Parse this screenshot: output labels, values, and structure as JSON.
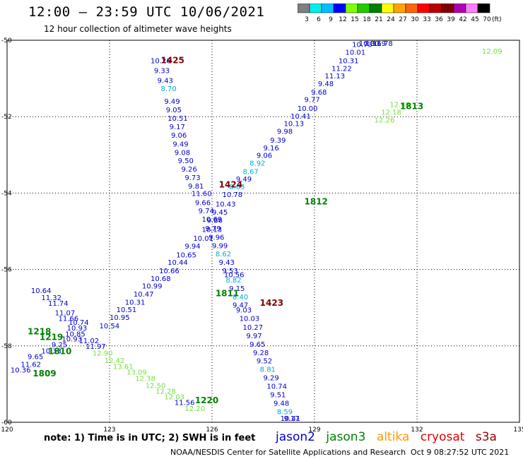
{
  "header": {
    "title": "12:00 — 23:59 UTC 10/06/2021",
    "subtitle": "12 hour collection of altimeter wave heights"
  },
  "colorbar": {
    "labels": [
      "3",
      "6",
      "9",
      "12",
      "15",
      "18",
      "21",
      "24",
      "27",
      "30",
      "33",
      "36",
      "39",
      "42",
      "45",
      "70"
    ],
    "unit": "(ft)",
    "colors": [
      "#808080",
      "#00eeee",
      "#00bfff",
      "#0000ff",
      "#7fff00",
      "#22cc00",
      "#008000",
      "#ffff00",
      "#ffa500",
      "#ff6600",
      "#ff0000",
      "#bb0000",
      "#800000",
      "#b000b0",
      "#ff80ff",
      "#000000"
    ]
  },
  "chart_data": {
    "type": "scatter",
    "xlim": [
      120,
      135
    ],
    "ylim": [
      -60,
      -50
    ],
    "x_ticks": [
      120,
      123,
      126,
      129,
      132,
      135
    ],
    "y_ticks": [
      -50,
      -52,
      -54,
      -56,
      -58,
      -60
    ],
    "x_tick_labels": [
      "120",
      "123",
      "126",
      "129",
      "132",
      "135"
    ],
    "y_tick_labels": [
      "-50",
      "-52",
      "-54",
      "-56",
      "-58",
      "-60"
    ],
    "grid": true,
    "series": [
      {
        "name": "jason2",
        "color": "#0000cc",
        "points": [
          {
            "x": 124.2,
            "y": -50.6,
            "label": "10.26"
          },
          {
            "x": 124.3,
            "y": -50.86,
            "label": "9.33"
          },
          {
            "x": 124.4,
            "y": -51.12,
            "label": "9.43"
          },
          {
            "x": 124.5,
            "y": -51.33,
            "label": "8.70",
            "color": "#00aadd"
          },
          {
            "x": 124.6,
            "y": -51.66,
            "label": "9.49"
          },
          {
            "x": 124.65,
            "y": -51.89,
            "label": "9.05"
          },
          {
            "x": 124.7,
            "y": -52.11,
            "label": "10.51"
          },
          {
            "x": 124.75,
            "y": -52.33,
            "label": "9.17"
          },
          {
            "x": 124.8,
            "y": -52.55,
            "label": "9.06"
          },
          {
            "x": 124.85,
            "y": -52.78,
            "label": "9.49"
          },
          {
            "x": 124.9,
            "y": -53.0,
            "label": "9.08"
          },
          {
            "x": 125.0,
            "y": -53.22,
            "label": "9.50"
          },
          {
            "x": 125.1,
            "y": -53.44,
            "label": "9.26"
          },
          {
            "x": 125.2,
            "y": -53.66,
            "label": "9.73"
          },
          {
            "x": 125.3,
            "y": -53.88,
            "label": "9.81"
          },
          {
            "x": 125.4,
            "y": -54.08,
            "label": "11.60"
          },
          {
            "x": 125.5,
            "y": -54.32,
            "label": "9.66"
          },
          {
            "x": 125.6,
            "y": -54.53,
            "label": "9.74"
          },
          {
            "x": 125.7,
            "y": -54.75,
            "label": "10.69"
          },
          {
            "x": 125.8,
            "y": -54.99,
            "label": "9.79"
          },
          {
            "x": 125.9,
            "y": -55.22,
            "label": "9.96"
          },
          {
            "x": 126.0,
            "y": -55.44,
            "label": "9.99"
          },
          {
            "x": 126.1,
            "y": -55.66,
            "label": "8.62",
            "color": "#00aadd"
          },
          {
            "x": 126.2,
            "y": -55.88,
            "label": "9.43"
          },
          {
            "x": 126.3,
            "y": -56.1,
            "label": "9.53"
          },
          {
            "x": 126.35,
            "y": -56.2,
            "label": "10.56"
          },
          {
            "x": 126.4,
            "y": -56.34,
            "label": "8.82",
            "color": "#00aadd"
          },
          {
            "x": 126.5,
            "y": -56.56,
            "label": "9.15"
          },
          {
            "x": 126.6,
            "y": -56.78,
            "label": "8.40",
            "color": "#00aadd"
          },
          {
            "x": 126.6,
            "y": -57.0,
            "label": "9.47"
          },
          {
            "x": 126.7,
            "y": -57.13,
            "label": "9.03"
          },
          {
            "x": 126.8,
            "y": -57.35,
            "label": "10.03"
          },
          {
            "x": 126.9,
            "y": -57.58,
            "label": "10.27"
          },
          {
            "x": 127.0,
            "y": -57.8,
            "label": "9.97"
          },
          {
            "x": 127.1,
            "y": -58.02,
            "label": "9.65"
          },
          {
            "x": 127.2,
            "y": -58.24,
            "label": "9.28"
          },
          {
            "x": 127.3,
            "y": -58.46,
            "label": "9.52"
          },
          {
            "x": 127.4,
            "y": -58.68,
            "label": "8.81",
            "color": "#00aadd"
          },
          {
            "x": 127.5,
            "y": -58.9,
            "label": "9.29"
          },
          {
            "x": 127.6,
            "y": -59.12,
            "label": "10.74"
          },
          {
            "x": 127.7,
            "y": -59.34,
            "label": "9.51"
          },
          {
            "x": 127.8,
            "y": -59.57,
            "label": "9.48"
          },
          {
            "x": 127.9,
            "y": -59.79,
            "label": "8.59",
            "color": "#00aadd"
          },
          {
            "x": 128.0,
            "y": -60.0,
            "label": "10.41"
          },
          {
            "x": 128.1,
            "y": -60.2,
            "label": "9.17"
          }
        ]
      },
      {
        "name": "jason3",
        "color": "#0000cc",
        "points": [
          {
            "x": 120.1,
            "y": -58.7,
            "label": "10.36"
          },
          {
            "x": 120.4,
            "y": -58.55,
            "label": "11.62"
          },
          {
            "x": 120.6,
            "y": -58.35,
            "label": "9.65"
          },
          {
            "x": 121.0,
            "y": -58.2,
            "label": "10.33"
          },
          {
            "x": 121.3,
            "y": -58.03,
            "label": "9.25"
          },
          {
            "x": 121.6,
            "y": -57.88,
            "label": "10.93"
          },
          {
            "x": 121.7,
            "y": -57.75,
            "label": "10.85"
          },
          {
            "x": 121.75,
            "y": -57.6,
            "label": "10.93"
          },
          {
            "x": 121.8,
            "y": -57.45,
            "label": "10.74"
          },
          {
            "x": 121.5,
            "y": -57.35,
            "label": "11.66"
          },
          {
            "x": 121.4,
            "y": -57.2,
            "label": "11.07"
          },
          {
            "x": 121.2,
            "y": -56.95,
            "label": "11.74"
          },
          {
            "x": 121.0,
            "y": -56.8,
            "label": "11.32"
          },
          {
            "x": 120.7,
            "y": -56.62,
            "label": "10.64"
          },
          {
            "x": 122.1,
            "y": -57.93,
            "label": "11.02"
          },
          {
            "x": 122.3,
            "y": -58.08,
            "label": "11.97"
          },
          {
            "x": 122.7,
            "y": -57.54,
            "label": "10.54"
          },
          {
            "x": 123.0,
            "y": -57.32,
            "label": "10.95"
          },
          {
            "x": 123.2,
            "y": -57.12,
            "label": "10.51"
          },
          {
            "x": 123.45,
            "y": -56.92,
            "label": "10.31"
          },
          {
            "x": 123.7,
            "y": -56.71,
            "label": "10.47"
          },
          {
            "x": 123.95,
            "y": -56.5,
            "label": "10.99"
          },
          {
            "x": 124.2,
            "y": -56.3,
            "label": "10.68"
          },
          {
            "x": 124.45,
            "y": -56.1,
            "label": "10.66"
          },
          {
            "x": 124.7,
            "y": -55.88,
            "label": "10.44"
          },
          {
            "x": 124.95,
            "y": -55.68,
            "label": "10.65"
          },
          {
            "x": 125.2,
            "y": -55.45,
            "label": "9.94"
          },
          {
            "x": 125.45,
            "y": -55.25,
            "label": "10.01"
          },
          {
            "x": 125.7,
            "y": -55.02,
            "label": "10.13"
          },
          {
            "x": 125.85,
            "y": -54.78,
            "label": "9.86"
          },
          {
            "x": 126.0,
            "y": -54.57,
            "label": "9.45"
          },
          {
            "x": 126.1,
            "y": -54.35,
            "label": "10.43"
          },
          {
            "x": 126.3,
            "y": -54.1,
            "label": "10.78"
          },
          {
            "x": 126.5,
            "y": -53.9,
            "label": "8.63",
            "color": "#00aadd"
          },
          {
            "x": 126.7,
            "y": -53.7,
            "label": "9.49"
          },
          {
            "x": 126.9,
            "y": -53.5,
            "label": "8.67",
            "color": "#00aadd"
          },
          {
            "x": 127.1,
            "y": -53.28,
            "label": "8.92",
            "color": "#00aadd"
          },
          {
            "x": 127.3,
            "y": -53.08,
            "label": "9.06"
          },
          {
            "x": 127.5,
            "y": -52.88,
            "label": "9.16"
          },
          {
            "x": 127.7,
            "y": -52.68,
            "label": "9.39"
          },
          {
            "x": 127.9,
            "y": -52.45,
            "label": "9.98"
          },
          {
            "x": 128.1,
            "y": -52.25,
            "label": "10.13"
          },
          {
            "x": 128.3,
            "y": -52.05,
            "label": "10.41"
          },
          {
            "x": 128.5,
            "y": -51.85,
            "label": "10.00"
          },
          {
            "x": 128.7,
            "y": -51.62,
            "label": "9.77"
          },
          {
            "x": 128.9,
            "y": -51.42,
            "label": "9.68"
          },
          {
            "x": 129.1,
            "y": -51.2,
            "label": "9.48"
          },
          {
            "x": 129.3,
            "y": -51.0,
            "label": "11.13"
          },
          {
            "x": 129.5,
            "y": -50.8,
            "label": "11.22"
          },
          {
            "x": 129.7,
            "y": -50.6,
            "label": "10.31"
          },
          {
            "x": 129.9,
            "y": -50.38,
            "label": "10.01"
          },
          {
            "x": 130.1,
            "y": -50.18,
            "label": "10.73"
          },
          {
            "x": 130.3,
            "y": -49.97,
            "label": "10.30"
          },
          {
            "x": 130.5,
            "y": -49.77,
            "label": "10.69"
          },
          {
            "x": 130.7,
            "y": -49.55,
            "label": "11.78"
          }
        ]
      },
      {
        "name": "s3a",
        "color": "#77dd44",
        "points": [
          {
            "x": 122.5,
            "y": -58.25,
            "label": "12.90"
          },
          {
            "x": 122.85,
            "y": -58.45,
            "label": "12.42"
          },
          {
            "x": 123.1,
            "y": -58.6,
            "label": "13.61"
          },
          {
            "x": 123.5,
            "y": -58.75,
            "label": "13.09"
          },
          {
            "x": 123.75,
            "y": -58.92,
            "label": "12.38"
          },
          {
            "x": 124.05,
            "y": -59.1,
            "label": "12.50"
          },
          {
            "x": 124.35,
            "y": -59.25,
            "label": "12.28"
          },
          {
            "x": 124.6,
            "y": -59.4,
            "label": "12.03"
          },
          {
            "x": 124.9,
            "y": -59.55,
            "label": "11.56",
            "color": "#0000cc"
          },
          {
            "x": 125.2,
            "y": -59.7,
            "label": "12.20"
          },
          {
            "x": 130.75,
            "y": -52.15,
            "label": "12.26"
          },
          {
            "x": 130.95,
            "y": -51.95,
            "label": "12.18"
          },
          {
            "x": 131.2,
            "y": -51.75,
            "label": "12.48"
          },
          {
            "x": 133.9,
            "y": -50.35,
            "label": "12.09"
          }
        ]
      }
    ],
    "pass_labels": [
      {
        "x": 124.5,
        "y": -50.6,
        "text": "1425",
        "color": "#800000"
      },
      {
        "x": 126.2,
        "y": -53.85,
        "text": "1424",
        "color": "#800000"
      },
      {
        "x": 127.4,
        "y": -56.95,
        "text": "1423",
        "color": "#800000"
      },
      {
        "x": 126.1,
        "y": -56.7,
        "text": "1811",
        "color": "#008000"
      },
      {
        "x": 128.7,
        "y": -54.3,
        "text": "1812",
        "color": "#008000"
      },
      {
        "x": 131.5,
        "y": -51.8,
        "text": "1813",
        "color": "#008000"
      },
      {
        "x": 120.6,
        "y": -57.7,
        "text": "1218",
        "color": "#008000"
      },
      {
        "x": 120.95,
        "y": -57.85,
        "text": "1219",
        "color": "#008000"
      },
      {
        "x": 121.2,
        "y": -58.22,
        "text": "1810",
        "color": "#008000"
      },
      {
        "x": 120.75,
        "y": -58.8,
        "text": "1809",
        "color": "#008000"
      },
      {
        "x": 125.5,
        "y": -59.5,
        "text": "1220",
        "color": "#008000"
      }
    ]
  },
  "footer": {
    "note": "note:  1) Time is in UTC;  2) SWH is in feet",
    "legend": [
      {
        "name": "jason2",
        "color": "#0000cc"
      },
      {
        "name": "jason3",
        "color": "#008000"
      },
      {
        "name": "altika",
        "color": "#ff9900"
      },
      {
        "name": "cryosat",
        "color": "#dd0000"
      },
      {
        "name": "s3a",
        "color": "#990000"
      }
    ],
    "credit": "NOAA/NESDIS Center for Satellite Applications and Research",
    "timestamp": "Oct  9 08:27:52 UTC 2021"
  }
}
